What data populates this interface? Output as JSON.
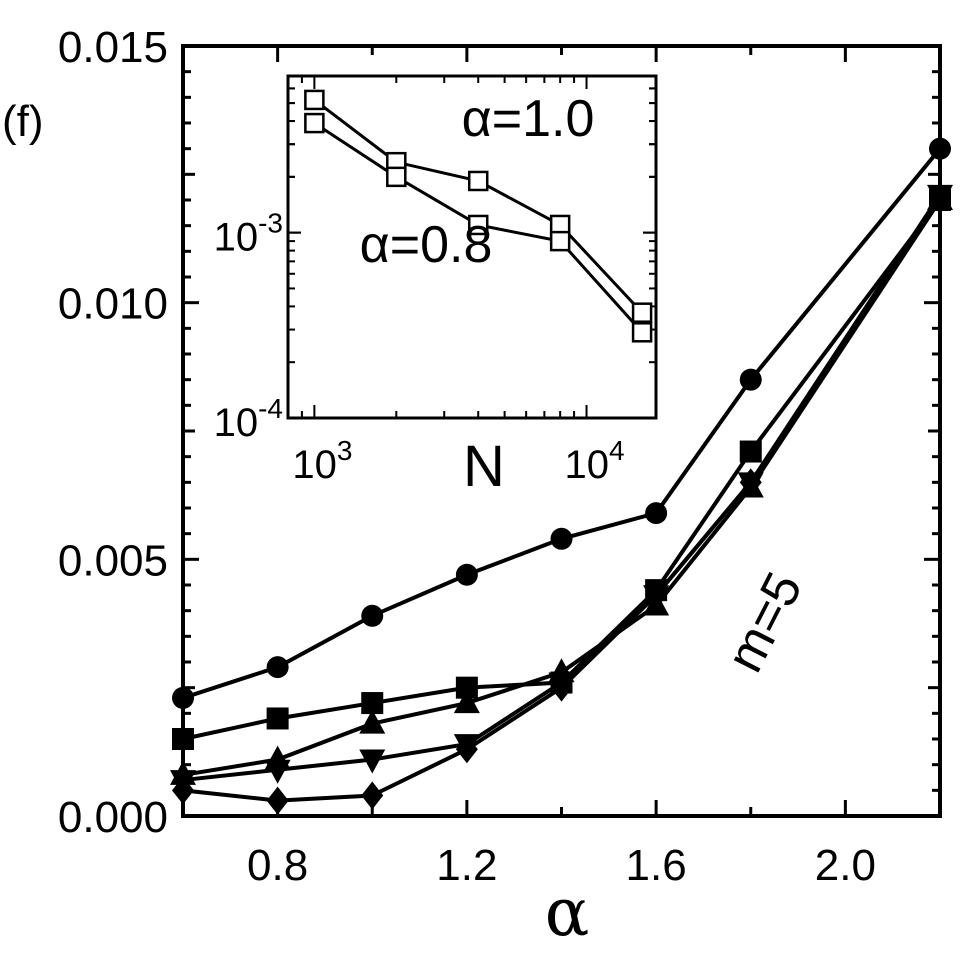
{
  "panel_label": "(f)",
  "annotation_main": "m=5",
  "chart_data": [
    {
      "type": "line",
      "xlabel": "α",
      "ylabel": "",
      "xlim": [
        0.6,
        2.2
      ],
      "ylim": [
        0.0,
        0.015
      ],
      "x_ticks": [
        0.8,
        1.2,
        1.6,
        2.0
      ],
      "x_tick_labels": [
        "0.8",
        "1.2",
        "1.6",
        "2.0"
      ],
      "y_ticks": [
        0.0,
        0.005,
        0.01,
        0.015
      ],
      "y_tick_labels": [
        "0.000",
        "0.005",
        "0.010",
        "0.015"
      ],
      "grid": false,
      "annotations": [
        "m=5"
      ],
      "x": [
        0.6,
        0.8,
        1.0,
        1.2,
        1.4,
        1.6,
        1.8,
        2.2
      ],
      "series": [
        {
          "marker": "circle",
          "values": [
            0.0023,
            0.0029,
            0.0039,
            0.0047,
            0.0054,
            0.0059,
            0.0085,
            0.013
          ]
        },
        {
          "marker": "square",
          "values": [
            0.0015,
            0.0019,
            0.0022,
            0.0025,
            0.0026,
            0.0044,
            0.0071,
            0.012
          ]
        },
        {
          "marker": "triangle-up",
          "values": [
            0.0008,
            0.0011,
            0.0018,
            0.0022,
            0.0028,
            0.0041,
            0.0064,
            0.012
          ]
        },
        {
          "marker": "triangle-down",
          "values": [
            0.0007,
            0.0009,
            0.0011,
            0.0014,
            0.0026,
            0.0043,
            0.0065,
            0.0121
          ]
        },
        {
          "marker": "diamond",
          "values": [
            0.0005,
            0.0003,
            0.0004,
            0.0013,
            0.0025,
            0.0043,
            0.0065,
            0.012
          ]
        }
      ]
    },
    {
      "type": "line",
      "scale": "log-log",
      "xlabel": "N",
      "ylabel": "",
      "xlim": [
        800,
        18000
      ],
      "ylim": [
        0.0001,
        0.007
      ],
      "x_ticks": [
        1000,
        10000
      ],
      "x_tick_labels": [
        {
          "base": "10",
          "exp": "3"
        },
        {
          "base": "10",
          "exp": "4"
        }
      ],
      "y_ticks": [
        0.0001,
        0.001
      ],
      "y_tick_labels": [
        {
          "base": "10",
          "exp": "-4"
        },
        {
          "base": "10",
          "exp": "-3"
        }
      ],
      "grid": false,
      "annotations": [
        "α=1.0",
        "α=0.8"
      ],
      "x": [
        1000,
        2000,
        4000,
        8000,
        16000
      ],
      "series": [
        {
          "label": "α=1.0",
          "marker": "open-square",
          "values": [
            0.0052,
            0.0024,
            0.0019,
            0.0011,
            0.00037
          ]
        },
        {
          "label": "α=0.8",
          "marker": "open-square",
          "values": [
            0.0039,
            0.002,
            0.0011,
            0.0009,
            0.00029
          ]
        }
      ]
    }
  ]
}
